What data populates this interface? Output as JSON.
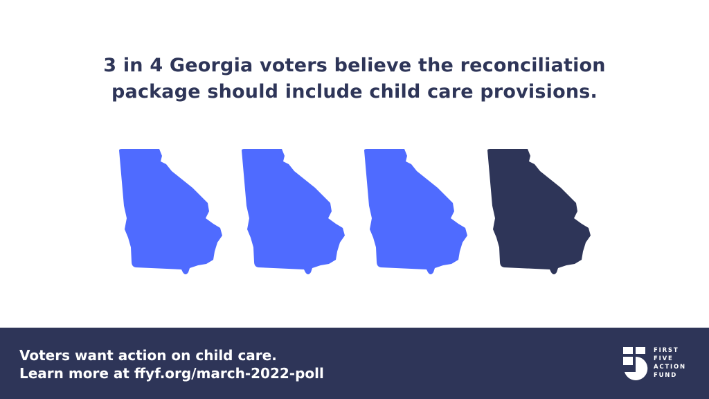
{
  "headline": {
    "lines": [
      "3 in 4 Georgia voters believe the reconciliation",
      "package should include child care provisions."
    ]
  },
  "footer": {
    "lines": [
      "Voters want action on child care.",
      "Learn more at ffyf.org/march-2022-poll"
    ]
  },
  "logo": {
    "lines": [
      "FIRST",
      "FIVE",
      "ACTION",
      "FUND"
    ]
  }
}
